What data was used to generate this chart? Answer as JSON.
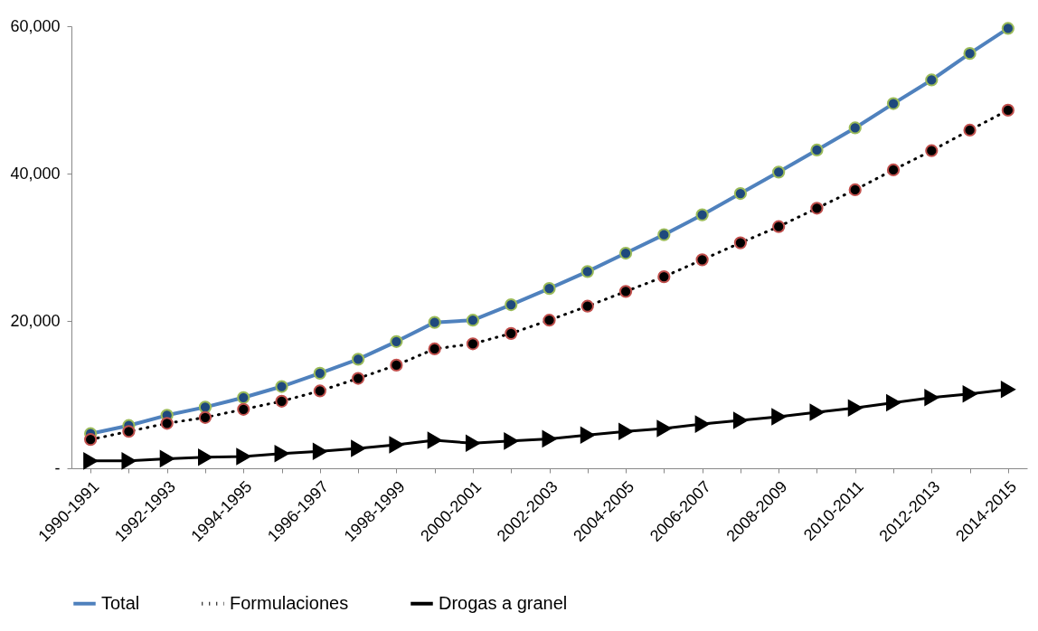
{
  "chart_data": {
    "type": "line",
    "categories": [
      "1990-1991",
      null,
      "1992-1993",
      null,
      "1994-1995",
      null,
      "1996-1997",
      null,
      "1998-1999",
      null,
      "2000-2001",
      null,
      "2002-2003",
      null,
      "2004-2005",
      null,
      "2006-2007",
      null,
      "2008-2009",
      null,
      "2010-2011",
      null,
      "2012-2013",
      null,
      "2014-2015"
    ],
    "series": [
      {
        "name": "Total",
        "color": "#4f81bd",
        "marker": "circle",
        "line_style": "solid",
        "values": [
          4700,
          5800,
          7200,
          8300,
          9600,
          11100,
          12900,
          14800,
          17200,
          19800,
          20100,
          22200,
          24400,
          26700,
          29200,
          31700,
          34400,
          37300,
          40200,
          43200,
          46200,
          49500,
          52700,
          56300,
          59700
        ]
      },
      {
        "name": "Formulaciones",
        "color": "#000000",
        "marker": "circle",
        "line_style": "dotted",
        "values": [
          3900,
          5000,
          6100,
          6900,
          8000,
          9100,
          10500,
          12200,
          14000,
          16200,
          16900,
          18300,
          20100,
          22000,
          24000,
          26000,
          28300,
          30600,
          32800,
          35300,
          37800,
          40500,
          43100,
          45900,
          48600
        ]
      },
      {
        "name": "Drogas a granel",
        "color": "#000000",
        "marker": "triangle",
        "line_style": "solid",
        "values": [
          1000,
          1000,
          1300,
          1500,
          1600,
          2000,
          2300,
          2700,
          3200,
          3800,
          3400,
          3700,
          4000,
          4500,
          5000,
          5400,
          6000,
          6500,
          7000,
          7600,
          8200,
          8900,
          9600,
          10100,
          10700
        ]
      }
    ],
    "ylim": [
      0,
      60000
    ],
    "yticks": [
      {
        "value": 0,
        "label": "-"
      },
      {
        "value": 20000,
        "label": "20,000"
      },
      {
        "value": 40000,
        "label": "40,000"
      },
      {
        "value": 60000,
        "label": "60,000"
      }
    ],
    "grid": false,
    "legend": "bottom"
  }
}
